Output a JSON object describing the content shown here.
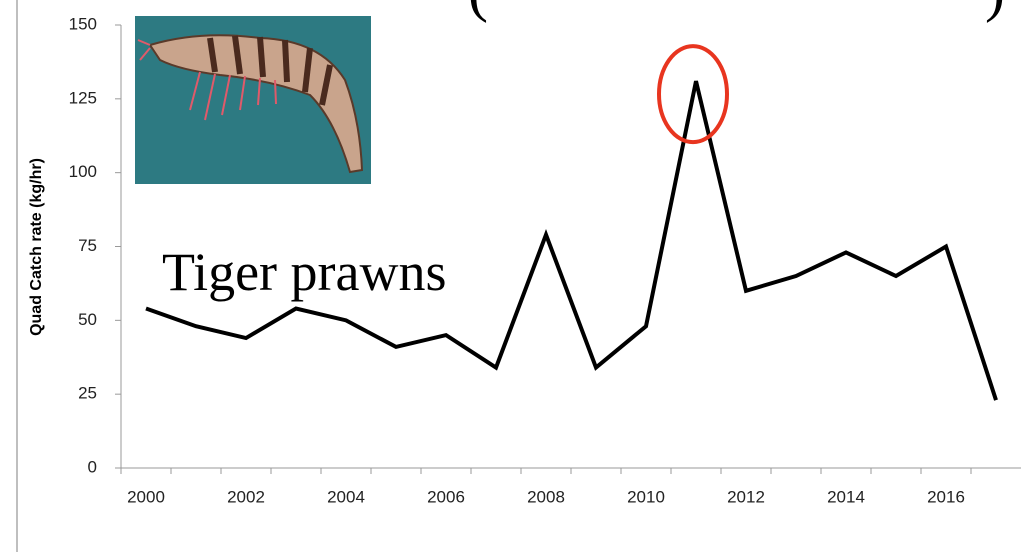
{
  "chart_data": {
    "type": "line",
    "title_fragments": [
      "(",
      ")"
    ],
    "annotation": "Tiger prawns",
    "y_label": "Quad Catch rate (kg/hr)",
    "categories": [
      "2000",
      null,
      "2002",
      null,
      "2004",
      null,
      "2006",
      null,
      "2008",
      null,
      "2010",
      null,
      "2012",
      null,
      "2014",
      null,
      "2016",
      null
    ],
    "series": [
      {
        "name": "Tiger prawns",
        "color": "#000000",
        "values": [
          54,
          48,
          44,
          54,
          50,
          41,
          45,
          34,
          79,
          34,
          48,
          131,
          60,
          65,
          73,
          65,
          75,
          23
        ]
      }
    ],
    "highlight_index": 11,
    "highlight_color": "#e8351f",
    "ylim": [
      0,
      150
    ],
    "yticks": [
      0,
      25,
      50,
      75,
      100,
      125,
      150
    ],
    "grid": false
  }
}
